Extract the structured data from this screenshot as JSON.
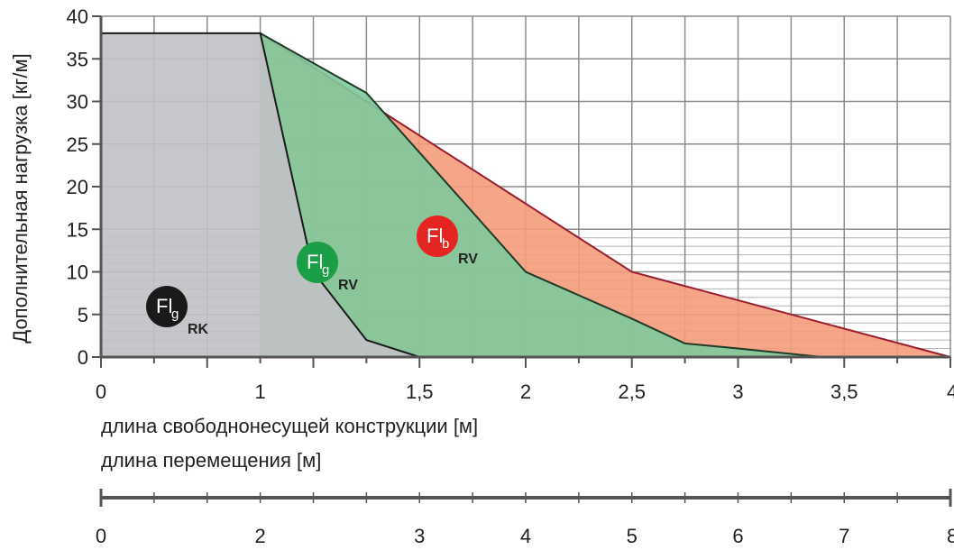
{
  "chart_data": {
    "type": "area",
    "ylabel": "Дополнительная нагрузка  [кг/м]",
    "xlabel_primary": "длина свободнонесущей конструкции [м]",
    "xlabel_secondary": "длина перемещения [м]",
    "xlim": [
      0,
      4
    ],
    "ylim": [
      0,
      40
    ],
    "y_ticks": [
      "0",
      "5",
      "10",
      "15",
      "20",
      "25",
      "30",
      "35",
      "40"
    ],
    "y_tick_values": [
      0,
      5,
      10,
      15,
      20,
      25,
      30,
      35,
      40
    ],
    "x_ticks": [
      "0",
      "1",
      "1,5",
      "2",
      "2,5",
      "3",
      "3,5",
      "4"
    ],
    "x_tick_values": [
      0,
      0.75,
      1.5,
      2.0,
      2.5,
      3.0,
      3.5,
      4.0
    ],
    "secondary_axis": {
      "ticks": [
        "0",
        "2",
        "3",
        "4",
        "5",
        "6",
        "7",
        "8"
      ],
      "tick_values": [
        0,
        0.75,
        1.5,
        2.0,
        2.5,
        3.0,
        3.5,
        4.0
      ]
    },
    "grid": true,
    "series": [
      {
        "badge_main": "Fl",
        "badge_sub": "b",
        "badge_suffix": "RV",
        "color": "#f49b7b",
        "edge_color": "#9b1c2e",
        "badge_color": "#e52521",
        "points": [
          [
            0.75,
            38
          ],
          [
            2.5,
            10
          ],
          [
            4.0,
            0
          ]
        ]
      },
      {
        "badge_main": "Fl",
        "badge_sub": "g",
        "badge_suffix": "RV",
        "color": "#80c99c",
        "edge_color": "#1f3a28",
        "badge_color": "#1a9e46",
        "points": [
          [
            0.75,
            38
          ],
          [
            1.25,
            31
          ],
          [
            1.5,
            24
          ],
          [
            2.0,
            10
          ],
          [
            2.5,
            4.5
          ],
          [
            2.75,
            1.6
          ],
          [
            3.0,
            1.0
          ],
          [
            3.4,
            0
          ]
        ]
      },
      {
        "badge_main": "Fl",
        "badge_sub": "g",
        "badge_suffix": "RK",
        "color": "#c1c1c5",
        "edge_color": "#1a1a1a",
        "badge_color": "#1a1a1a",
        "points": [
          [
            0,
            38
          ],
          [
            0.75,
            38
          ],
          [
            1.0,
            10
          ],
          [
            1.25,
            2
          ],
          [
            1.5,
            0
          ]
        ]
      }
    ]
  }
}
